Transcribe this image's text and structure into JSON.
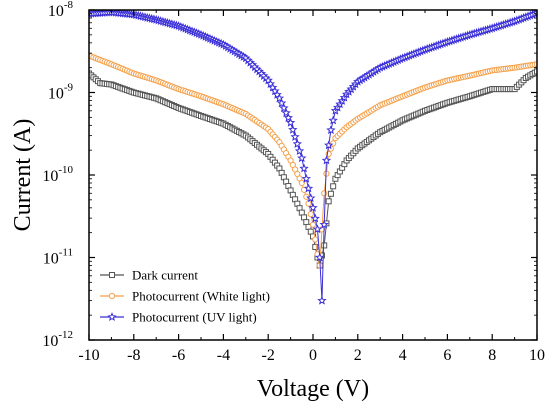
{
  "chart_data": {
    "type": "line",
    "xlabel": "Voltage (V)",
    "ylabel": "Current (A)",
    "y_scale": "log",
    "xlim": [
      -10,
      10
    ],
    "ylim": [
      1e-12,
      1e-08
    ],
    "x_ticks": [
      "-10",
      "-8",
      "-6",
      "-4",
      "-2",
      "0",
      "2",
      "4",
      "6",
      "8",
      "10"
    ],
    "y_ticks": [
      {
        "base": "10",
        "exp": "-12"
      },
      {
        "base": "10",
        "exp": "-11"
      },
      {
        "base": "10",
        "exp": "-10"
      },
      {
        "base": "10",
        "exp": "-9"
      },
      {
        "base": "10",
        "exp": "-8"
      }
    ],
    "grid": false,
    "legend_position": "bottom-left",
    "series": [
      {
        "name": "Dark current",
        "color": "#555555",
        "marker": "square",
        "x": [
          -10,
          -9.5,
          -9,
          -8,
          -7,
          -6,
          -5,
          -4,
          -3,
          -2,
          -1.5,
          -1,
          -0.5,
          0,
          0.2,
          0.3,
          0.5,
          0.7,
          1,
          1.5,
          2,
          3,
          4,
          5,
          6,
          7,
          8,
          9,
          9.5,
          10
        ],
        "y": [
          1.7e-09,
          1.3e-09,
          1.25e-09,
          1e-09,
          8.5e-10,
          6.5e-10,
          5.2e-10,
          4.2e-10,
          3e-10,
          1.8e-10,
          1.2e-10,
          6.5e-11,
          3.5e-11,
          1.8e-11,
          1e-11,
          8e-12,
          1.4e-11,
          4.8e-11,
          9e-11,
          1.5e-10,
          2.1e-10,
          3.3e-10,
          4.6e-10,
          6e-10,
          7.5e-10,
          9e-10,
          1.1e-09,
          1.1e-09,
          1.5e-09,
          1.8e-09
        ]
      },
      {
        "name": "Photocurrent (White light)",
        "color": "#f4a04a",
        "marker": "circle",
        "x": [
          -10,
          -9,
          -8,
          -7,
          -6,
          -5,
          -4,
          -3,
          -2,
          -1.5,
          -1,
          -0.5,
          -0.2,
          0,
          0.2,
          0.3,
          0.5,
          0.7,
          1,
          1.5,
          2,
          3,
          4,
          5,
          6,
          7,
          8,
          9,
          10
        ],
        "y": [
          2.8e-09,
          2.2e-09,
          1.7e-09,
          1.4e-09,
          1.1e-09,
          9e-10,
          7.2e-10,
          5.5e-10,
          3.6e-10,
          2.5e-10,
          1.5e-10,
          8e-11,
          4.5e-11,
          2.5e-11,
          1.1e-11,
          8e-12,
          6e-11,
          1.8e-10,
          2.8e-10,
          3.8e-10,
          4.8e-10,
          7e-10,
          9e-10,
          1.15e-09,
          1.4e-09,
          1.6e-09,
          1.85e-09,
          2e-09,
          2.2e-09
        ]
      },
      {
        "name": "Photocurrent (UV light)",
        "color": "#3a2fd8",
        "marker": "star",
        "x": [
          -10,
          -9,
          -8,
          -7,
          -6,
          -5,
          -4,
          -3,
          -2,
          -1.5,
          -1,
          -0.5,
          -0.3,
          0,
          0.2,
          0.3,
          0.4,
          0.5,
          0.6,
          0.8,
          1,
          1.5,
          2,
          3,
          4,
          5,
          6,
          7,
          8,
          9,
          10
        ],
        "y": [
          9e-09,
          9.4e-09,
          8.8e-09,
          7.6e-09,
          6.4e-09,
          5e-09,
          3.8e-09,
          2.6e-09,
          1.4e-09,
          8.5e-10,
          4.3e-10,
          1.6e-10,
          9e-11,
          4e-11,
          2.2e-11,
          1e-11,
          3e-12,
          2.5e-11,
          1.5e-10,
          3.5e-10,
          6e-10,
          9.5e-10,
          1.35e-09,
          2e-09,
          2.6e-09,
          3.3e-09,
          4.1e-09,
          5e-09,
          6e-09,
          7.3e-09,
          9.2e-09
        ]
      }
    ]
  }
}
